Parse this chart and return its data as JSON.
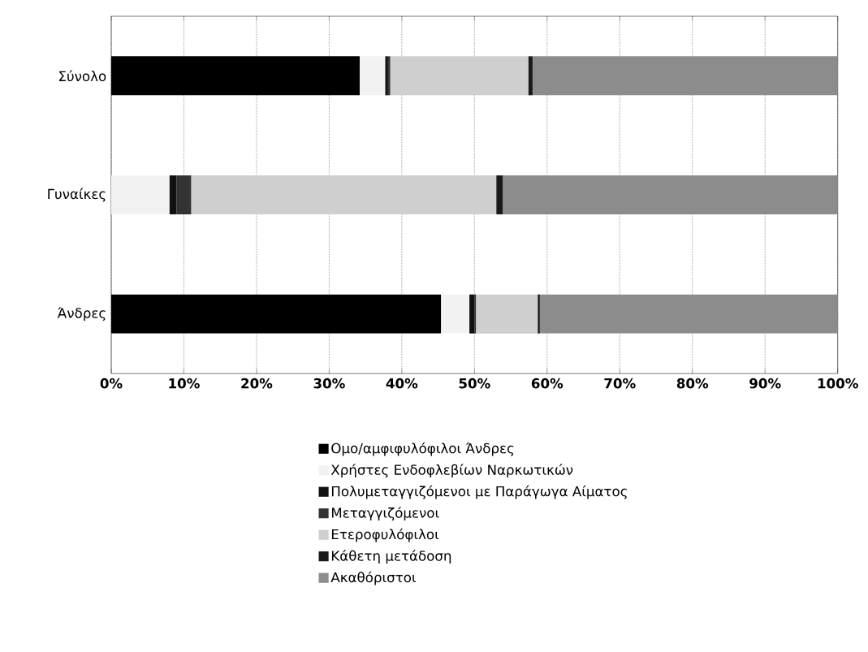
{
  "chart_data": {
    "type": "bar",
    "orientation": "horizontal",
    "stacked": true,
    "categories": [
      "Σύνολο",
      "Γυναίκες",
      "Άνδρες"
    ],
    "series": [
      {
        "name": "Ομο/αμφιφυλόφιλοι Άνδρες",
        "color": "#000000",
        "values": [
          34.2,
          0,
          45.4
        ]
      },
      {
        "name": "Χρήστες Ενδοφλεβίων Ναρκωτικών",
        "color": "#f2f2f2",
        "values": [
          3.5,
          8,
          3.9
        ]
      },
      {
        "name": "Πολυμεταγγιζόμενοι με Παράγωγα Αίματος",
        "color": "#111111",
        "values": [
          0.4,
          1,
          0.7
        ]
      },
      {
        "name": "Μεταγγιζόμενοι",
        "color": "#333333",
        "values": [
          0.3,
          2,
          0.2
        ]
      },
      {
        "name": "Ετεροφυλόφιλοι",
        "color": "#cfcfcf",
        "values": [
          19.0,
          42,
          8.5
        ]
      },
      {
        "name": "Κάθετη μετάδοση",
        "color": "#1a1a1a",
        "values": [
          0.6,
          0.9,
          0.3
        ]
      },
      {
        "name": "Ακαθόριστοι",
        "color": "#8c8c8c",
        "values": [
          42.0,
          46.1,
          41.0
        ]
      }
    ],
    "xlim": [
      0,
      100
    ],
    "xticks": [
      {
        "value": 0,
        "label": "0%"
      },
      {
        "value": 10,
        "label": "10%"
      },
      {
        "value": 20,
        "label": "20%"
      },
      {
        "value": 30,
        "label": "30%"
      },
      {
        "value": 40,
        "label": "40%"
      },
      {
        "value": 50,
        "label": "50%"
      },
      {
        "value": 60,
        "label": "60%"
      },
      {
        "value": 70,
        "label": "70%"
      },
      {
        "value": 80,
        "label": "80%"
      },
      {
        "value": 90,
        "label": "90%"
      },
      {
        "value": 100,
        "label": "100%"
      }
    ],
    "grid": "x",
    "legend": "bottom"
  }
}
